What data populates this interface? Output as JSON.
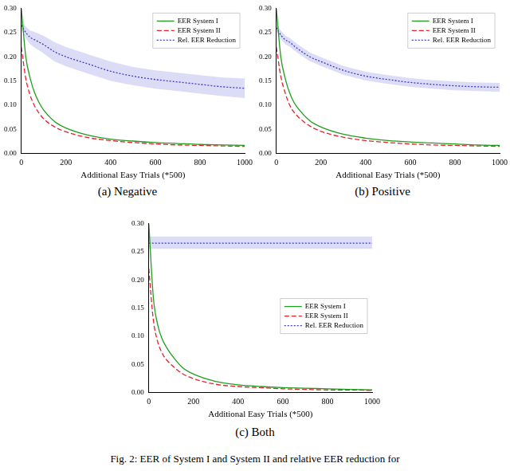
{
  "caption": "Fig. 2: EER of System I and System II and relative EER reduction for",
  "chart_data": [
    {
      "type": "line",
      "title": "(a) Negative",
      "x_label": "Additional Easy Trials (*500)",
      "x": [
        0,
        20,
        40,
        60,
        80,
        100,
        150,
        200,
        300,
        400,
        500,
        600,
        700,
        800,
        900,
        1000
      ],
      "xlim": [
        0,
        1000
      ],
      "xticks": [
        0,
        200,
        400,
        600,
        800,
        1000
      ],
      "ylim": [
        0,
        0.3
      ],
      "yticks": [
        {
          "value": 0,
          "label": "0.00"
        },
        {
          "value": 0.05,
          "label": "0.05"
        },
        {
          "value": 0.1,
          "label": "0.10"
        },
        {
          "value": 0.15,
          "label": "0.15"
        },
        {
          "value": 0.2,
          "label": "0.20"
        },
        {
          "value": 0.25,
          "label": "0.25"
        },
        {
          "value": 0.3,
          "label": "0.30"
        }
      ],
      "grid": false,
      "legend": "upper right",
      "series": [
        {
          "name": "EER System I",
          "color": "#1f9e1f",
          "line_style": "solid",
          "values": [
            0.3,
            0.2,
            0.155,
            0.125,
            0.105,
            0.09,
            0.066,
            0.053,
            0.038,
            0.03,
            0.026,
            0.023,
            0.021,
            0.019,
            0.018,
            0.017
          ]
        },
        {
          "name": "EER System II",
          "color": "#e8202a",
          "line_style": "dashed",
          "values": [
            0.22,
            0.155,
            0.12,
            0.098,
            0.083,
            0.072,
            0.055,
            0.045,
            0.033,
            0.027,
            0.023,
            0.02,
            0.018,
            0.017,
            0.016,
            0.015
          ]
        },
        {
          "name": "Rel. EER Reduction",
          "color": "#3b3bcc",
          "line_style": "dotted",
          "values": [
            0.265,
            0.25,
            0.24,
            0.235,
            0.23,
            0.225,
            0.21,
            0.2,
            0.185,
            0.17,
            0.16,
            0.153,
            0.148,
            0.143,
            0.138,
            0.135
          ],
          "lower": [
            0.255,
            0.238,
            0.226,
            0.219,
            0.213,
            0.207,
            0.19,
            0.18,
            0.165,
            0.15,
            0.141,
            0.134,
            0.129,
            0.124,
            0.119,
            0.115
          ],
          "upper": [
            0.275,
            0.262,
            0.254,
            0.251,
            0.247,
            0.243,
            0.23,
            0.22,
            0.205,
            0.19,
            0.179,
            0.172,
            0.167,
            0.162,
            0.157,
            0.155
          ]
        }
      ]
    },
    {
      "type": "line",
      "title": "(b) Positive",
      "x_label": "Additional Easy Trials (*500)",
      "x": [
        0,
        20,
        40,
        60,
        80,
        100,
        150,
        200,
        300,
        400,
        500,
        600,
        700,
        800,
        900,
        1000
      ],
      "xlim": [
        0,
        1000
      ],
      "xticks": [
        0,
        200,
        400,
        600,
        800,
        1000
      ],
      "ylim": [
        0,
        0.3
      ],
      "yticks": [
        {
          "value": 0,
          "label": "0.00"
        },
        {
          "value": 0.05,
          "label": "0.05"
        },
        {
          "value": 0.1,
          "label": "0.10"
        },
        {
          "value": 0.15,
          "label": "0.15"
        },
        {
          "value": 0.2,
          "label": "0.20"
        },
        {
          "value": 0.25,
          "label": "0.25"
        },
        {
          "value": 0.3,
          "label": "0.30"
        }
      ],
      "grid": false,
      "legend": "upper right",
      "series": [
        {
          "name": "EER System I",
          "color": "#1f9e1f",
          "line_style": "solid",
          "values": [
            0.3,
            0.2,
            0.155,
            0.125,
            0.105,
            0.092,
            0.068,
            0.055,
            0.04,
            0.032,
            0.027,
            0.024,
            0.022,
            0.02,
            0.018,
            0.017
          ]
        },
        {
          "name": "EER System II",
          "color": "#e8202a",
          "line_style": "dashed",
          "values": [
            0.22,
            0.16,
            0.125,
            0.1,
            0.085,
            0.075,
            0.057,
            0.046,
            0.034,
            0.027,
            0.023,
            0.02,
            0.018,
            0.017,
            0.016,
            0.015
          ]
        },
        {
          "name": "Rel. EER Reduction",
          "color": "#3b3bcc",
          "line_style": "dotted",
          "values": [
            0.26,
            0.245,
            0.235,
            0.23,
            0.222,
            0.215,
            0.2,
            0.19,
            0.172,
            0.16,
            0.153,
            0.147,
            0.143,
            0.14,
            0.138,
            0.137
          ],
          "lower": [
            0.252,
            0.236,
            0.226,
            0.221,
            0.213,
            0.206,
            0.191,
            0.181,
            0.163,
            0.151,
            0.144,
            0.138,
            0.134,
            0.131,
            0.129,
            0.128
          ],
          "upper": [
            0.268,
            0.254,
            0.244,
            0.239,
            0.231,
            0.224,
            0.209,
            0.199,
            0.181,
            0.169,
            0.162,
            0.156,
            0.152,
            0.149,
            0.147,
            0.146
          ]
        }
      ]
    },
    {
      "type": "line",
      "title": "(c) Both",
      "x_label": "Additional Easy Trials (*500)",
      "x": [
        0,
        20,
        40,
        60,
        80,
        100,
        150,
        200,
        300,
        400,
        500,
        600,
        700,
        800,
        900,
        1000
      ],
      "xlim": [
        0,
        1000
      ],
      "xticks": [
        0,
        200,
        400,
        600,
        800,
        1000
      ],
      "ylim": [
        0,
        0.3
      ],
      "yticks": [
        {
          "value": 0,
          "label": "0.00"
        },
        {
          "value": 0.05,
          "label": "0.05"
        },
        {
          "value": 0.1,
          "label": "0.10"
        },
        {
          "value": 0.15,
          "label": "0.15"
        },
        {
          "value": 0.2,
          "label": "0.20"
        },
        {
          "value": 0.25,
          "label": "0.25"
        },
        {
          "value": 0.3,
          "label": "0.30"
        }
      ],
      "grid": false,
      "legend": "center right",
      "series": [
        {
          "name": "EER System I",
          "color": "#1f9e1f",
          "line_style": "solid",
          "values": [
            0.3,
            0.17,
            0.12,
            0.095,
            0.08,
            0.068,
            0.045,
            0.033,
            0.02,
            0.014,
            0.011,
            0.009,
            0.008,
            0.007,
            0.006,
            0.005
          ]
        },
        {
          "name": "EER System II",
          "color": "#e8202a",
          "line_style": "dashed",
          "values": [
            0.22,
            0.13,
            0.09,
            0.07,
            0.058,
            0.05,
            0.034,
            0.025,
            0.015,
            0.011,
            0.009,
            0.007,
            0.006,
            0.005,
            0.005,
            0.004
          ]
        },
        {
          "name": "Rel. EER Reduction",
          "color": "#3b3bcc",
          "line_style": "dotted",
          "values": [
            0.265,
            0.265,
            0.265,
            0.265,
            0.265,
            0.265,
            0.265,
            0.265,
            0.265,
            0.265,
            0.265,
            0.265,
            0.265,
            0.265,
            0.265,
            0.265
          ],
          "lower": [
            0.255,
            0.255,
            0.255,
            0.255,
            0.255,
            0.255,
            0.255,
            0.255,
            0.255,
            0.255,
            0.255,
            0.255,
            0.255,
            0.255,
            0.255,
            0.255
          ],
          "upper": [
            0.277,
            0.277,
            0.277,
            0.277,
            0.277,
            0.277,
            0.277,
            0.277,
            0.277,
            0.277,
            0.277,
            0.277,
            0.277,
            0.277,
            0.277,
            0.277
          ]
        }
      ]
    }
  ]
}
